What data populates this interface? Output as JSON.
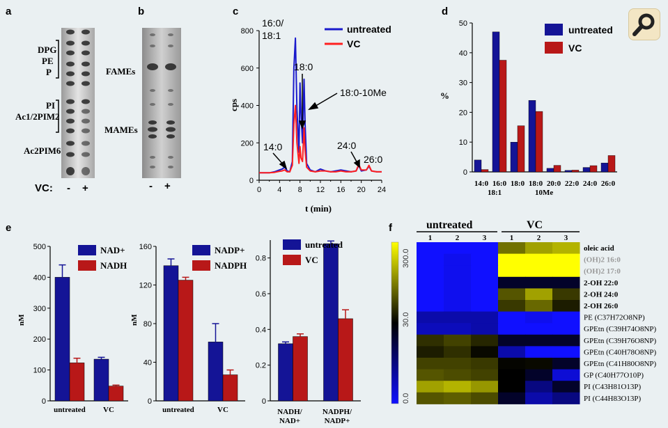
{
  "panels": {
    "a": {
      "label": "a",
      "bands": [
        "DPG",
        "PE",
        "P",
        "PI",
        "Ac1/2PIM2",
        "Ac2PIM6"
      ],
      "vc_label": "VC:",
      "lanes": [
        "-",
        "+"
      ]
    },
    "b": {
      "label": "b",
      "bands": [
        "FAMEs",
        "MAMEs"
      ],
      "lanes": [
        "-",
        "+"
      ]
    },
    "c": {
      "label": "c",
      "xlabel": "t (min)",
      "ylabel": "cps",
      "legend": [
        "untreated",
        "VC"
      ],
      "peaks": [
        "16:0/",
        "18:1",
        "18:0",
        "18:0-10Me",
        "14:0",
        "24:0",
        "26:0"
      ]
    },
    "d": {
      "label": "d",
      "ylabel": "%",
      "legend": [
        "untreated",
        "VC"
      ],
      "xlabel_sub": [
        "18:1",
        "10Me"
      ]
    },
    "e": {
      "label": "e",
      "ylabel": "nM",
      "legend1": [
        "NAD+",
        "NADH"
      ],
      "legend2": [
        "NADP+",
        "NADPH"
      ],
      "legend3": [
        "untreated",
        "VC"
      ],
      "cat3": [
        "NADH/",
        "NAD+",
        "NADPH/",
        "NADP+"
      ]
    },
    "f": {
      "label": "f",
      "groups": [
        "untreated",
        "VC"
      ],
      "cols": [
        "1",
        "2",
        "3",
        "1",
        "2",
        "3"
      ],
      "scale": [
        "300.0",
        "30.0",
        "0.0"
      ],
      "rows": [
        "oleic acid",
        "(OH)2 16:0",
        "(OH)2 17:0",
        "2-OH 22:0",
        "2-OH 24:0",
        "2-OH 26:0",
        "PE (C37H72O8NP)",
        "GPEtn (C39H74O8NP)",
        "GPEtn (C39H76O8NP)",
        "GPEtn (C40H78O8NP)",
        "GPEtn (C41H80O8NP)",
        "GP (C40H77O10P)",
        "PI (C43H81O13P)",
        "PI (C44H83O13P)"
      ]
    }
  },
  "colors": {
    "blue": "#141496",
    "red": "#b81818",
    "trace_blue": "#1a1acc",
    "trace_red": "#ff2020"
  },
  "chart_data": [
    {
      "id": "c",
      "type": "line",
      "xlabel": "t (min)",
      "ylabel": "cps",
      "xlim": [
        0,
        24
      ],
      "ylim": [
        0,
        800
      ],
      "xticks": [
        0,
        4,
        8,
        12,
        16,
        20,
        24
      ],
      "yticks": [
        0,
        200,
        400,
        600,
        800
      ],
      "series": [
        {
          "name": "untreated",
          "x": [
            0,
            2,
            3,
            4,
            4.5,
            5,
            5.5,
            6,
            6.5,
            6.8,
            7.1,
            7.4,
            7.8,
            8.0,
            8.2,
            8.5,
            8.8,
            9.0,
            9.3,
            10,
            11,
            12,
            13,
            14,
            15,
            16,
            17,
            18,
            19,
            19.5,
            20,
            21,
            21.5,
            22,
            23,
            24
          ],
          "y": [
            40,
            40,
            45,
            55,
            60,
            70,
            50,
            45,
            100,
            600,
            760,
            380,
            150,
            520,
            360,
            200,
            540,
            300,
            90,
            55,
            45,
            60,
            50,
            45,
            50,
            55,
            50,
            45,
            50,
            80,
            50,
            55,
            75,
            50,
            45,
            45
          ]
        },
        {
          "name": "VC",
          "x": [
            0,
            2,
            3,
            4,
            4.5,
            5,
            5.5,
            6,
            6.5,
            6.8,
            7.1,
            7.4,
            7.8,
            8.0,
            8.2,
            8.5,
            8.8,
            9.0,
            9.3,
            10,
            11,
            12,
            13,
            14,
            15,
            16,
            17,
            18,
            19,
            19.5,
            20,
            21,
            21.5,
            22,
            23,
            24
          ],
          "y": [
            40,
            40,
            42,
            48,
            50,
            55,
            45,
            45,
            80,
            300,
            400,
            200,
            90,
            180,
            120,
            100,
            280,
            160,
            70,
            50,
            45,
            50,
            50,
            45,
            45,
            50,
            45,
            45,
            50,
            85,
            55,
            55,
            80,
            50,
            45,
            45
          ]
        }
      ]
    },
    {
      "id": "d",
      "type": "bar",
      "categories": [
        "14:0",
        "16:0",
        "18:0",
        "18:0",
        "20:0",
        "22:0",
        "24:0",
        "26:0"
      ],
      "ylabel": "%",
      "ylim": [
        0,
        50
      ],
      "yticks": [
        0,
        10,
        20,
        30,
        40,
        50
      ],
      "series": [
        {
          "name": "untreated",
          "values": [
            4,
            47,
            10,
            24,
            1.2,
            0.5,
            1.5,
            3
          ]
        },
        {
          "name": "VC",
          "values": [
            0.8,
            37.5,
            15.5,
            20.3,
            2.2,
            0.6,
            2.1,
            5.5
          ]
        }
      ]
    },
    {
      "id": "e1",
      "type": "bar",
      "categories": [
        "untreated",
        "VC"
      ],
      "ylabel": "nM",
      "ylim": [
        0,
        500
      ],
      "yticks": [
        0,
        100,
        200,
        300,
        400,
        500
      ],
      "series": [
        {
          "name": "NAD+",
          "values": [
            400,
            135
          ],
          "errors": [
            40,
            6
          ]
        },
        {
          "name": "NADH",
          "values": [
            123,
            48
          ],
          "errors": [
            15,
            3
          ]
        }
      ]
    },
    {
      "id": "e2",
      "type": "bar",
      "categories": [
        "untreated",
        "VC"
      ],
      "ylabel": "nM",
      "ylim": [
        0,
        160
      ],
      "yticks": [
        0,
        40,
        80,
        120,
        160
      ],
      "series": [
        {
          "name": "NADP+",
          "values": [
            140,
            61
          ],
          "errors": [
            7,
            19
          ]
        },
        {
          "name": "NADPH",
          "values": [
            125,
            27
          ],
          "errors": [
            3,
            5
          ]
        }
      ]
    },
    {
      "id": "e3",
      "type": "bar",
      "categories": [
        "NADH/NAD+",
        "NADPH/NADP+"
      ],
      "ylim": [
        0,
        0.9
      ],
      "yticks": [
        0,
        0.2,
        0.4,
        0.6,
        0.8
      ],
      "series": [
        {
          "name": "untreated",
          "values": [
            0.32,
            0.88
          ],
          "errors": [
            0.01,
            0.015
          ]
        },
        {
          "name": "VC",
          "values": [
            0.36,
            0.46
          ],
          "errors": [
            0.015,
            0.05
          ]
        }
      ]
    },
    {
      "id": "f",
      "type": "heatmap",
      "scale": [
        0,
        30,
        300
      ],
      "values": [
        [
          0,
          0,
          0,
          150,
          200,
          220
        ],
        [
          0,
          2,
          0,
          300,
          300,
          300
        ],
        [
          0,
          2,
          0,
          300,
          300,
          300
        ],
        [
          0,
          2,
          0,
          25,
          25,
          25
        ],
        [
          0,
          2,
          0,
          120,
          200,
          90
        ],
        [
          0,
          2,
          0,
          90,
          140,
          60
        ],
        [
          10,
          10,
          10,
          0,
          2,
          0
        ],
        [
          8,
          8,
          10,
          0,
          0,
          0
        ],
        [
          80,
          100,
          70,
          25,
          25,
          25
        ],
        [
          60,
          80,
          40,
          10,
          0,
          0
        ],
        [
          100,
          100,
          90,
          35,
          40,
          25
        ],
        [
          120,
          110,
          100,
          30,
          25,
          5
        ],
        [
          200,
          220,
          190,
          30,
          15,
          25
        ],
        [
          120,
          130,
          110,
          25,
          10,
          15
        ]
      ]
    }
  ]
}
